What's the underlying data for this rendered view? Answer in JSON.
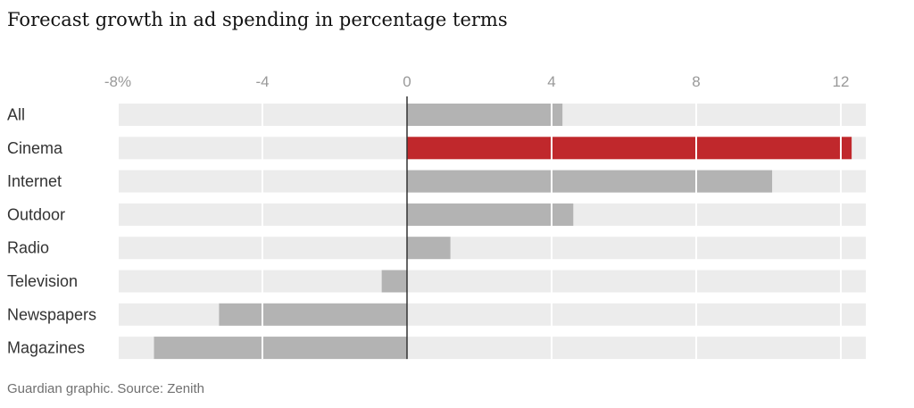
{
  "chart_data": {
    "type": "bar",
    "orientation": "horizontal",
    "title": "Forecast growth in ad spending in percentage terms",
    "source": "Guardian graphic. Source: Zenith",
    "categories": [
      "All",
      "Cinema",
      "Internet",
      "Outdoor",
      "Radio",
      "Television",
      "Newspapers",
      "Magazines"
    ],
    "values": [
      4.3,
      12.3,
      10.1,
      4.6,
      1.2,
      -0.7,
      -5.2,
      -7.0
    ],
    "highlight": "Cinema",
    "xlim": [
      -8,
      12.6
    ],
    "xticks": [
      -8,
      -4,
      0,
      4,
      8,
      12
    ],
    "xtick_labels": [
      "-8%",
      "-4",
      "0",
      "4",
      "8",
      "12"
    ],
    "xlabel": "",
    "ylabel": "",
    "grid": true,
    "colors": {
      "bar": "#b3b3b3",
      "highlight": "#c0282c",
      "track": "#ececec",
      "grid": "#ffffff",
      "zero_line": "#333333"
    }
  }
}
